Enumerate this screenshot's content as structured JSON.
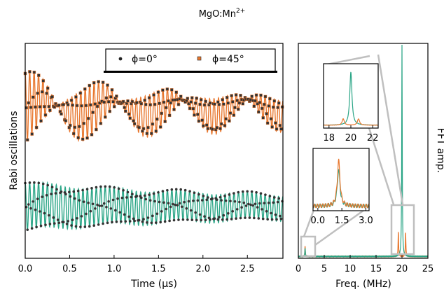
{
  "figure": {
    "title_main": "MgO:Mn",
    "title_sup": "2+"
  },
  "colors": {
    "orange": "#e8772e",
    "green": "#2aa586",
    "dots": "#222222",
    "zoom": "#bfbfbf"
  },
  "chart_data": [
    {
      "type": "line",
      "panel": "rabi",
      "xlabel": "Time (μs)",
      "ylabel": "Rabi oscillations",
      "xlim": [
        0.0,
        2.9
      ],
      "xticks": [
        "0.0",
        "0.5",
        "1.0",
        "1.5",
        "2.0",
        "2.5"
      ],
      "xtick_values": [
        0.0,
        0.5,
        1.0,
        1.5,
        2.0,
        2.5
      ],
      "legend": {
        "placement": "top-right",
        "items": [
          {
            "label": "ϕ=0°",
            "marker": "dot",
            "color": "dots"
          },
          {
            "label": "ϕ=45°",
            "marker": "square",
            "color": "orange"
          }
        ]
      },
      "series": [
        {
          "name": "ϕ=45°",
          "color": "orange",
          "offset": 0.7,
          "frequencies_mhz": [
            19.3,
            20.7
          ],
          "amplitude": 0.16,
          "decay_us": 1.6,
          "slow_beat_mhz": 1.3,
          "slow_amplitude": 0.04
        },
        {
          "name": "ϕ=0°",
          "color": "green",
          "offset": 0.24,
          "frequencies_mhz": [
            20.0
          ],
          "amplitude": 0.11,
          "decay_us": 2.2,
          "slow_beat_mhz": 1.3,
          "slow_amplitude": 0.01
        }
      ]
    },
    {
      "type": "line",
      "panel": "fft",
      "xlabel": "Freq. (MHz)",
      "ylabel": "FFT amp.",
      "xlim": [
        0,
        25
      ],
      "xticks": [
        "0",
        "5",
        "10",
        "15",
        "20",
        "25"
      ],
      "xtick_values": [
        0,
        5,
        10,
        15,
        20,
        25
      ],
      "series": [
        {
          "name": "ϕ=0°",
          "color": "green",
          "peaks_mhz": [
            20.0,
            1.3
          ],
          "peak_heights": [
            1.0,
            0.04
          ]
        },
        {
          "name": "ϕ=45°",
          "color": "orange",
          "peaks_mhz": [
            19.3,
            20.7,
            1.3
          ],
          "peak_heights": [
            0.12,
            0.12,
            0.05
          ]
        }
      ],
      "insets": [
        {
          "name": "inset-high",
          "xticks": [
            "18",
            "20",
            "22"
          ],
          "xtick_values": [
            18,
            20,
            22
          ],
          "xlim": [
            17.5,
            22.5
          ]
        },
        {
          "name": "inset-low",
          "xticks": [
            "0.0",
            "1.5",
            "3.0"
          ],
          "xtick_values": [
            0.0,
            1.5,
            3.0
          ],
          "xlim": [
            -0.3,
            3.2
          ]
        }
      ]
    }
  ]
}
